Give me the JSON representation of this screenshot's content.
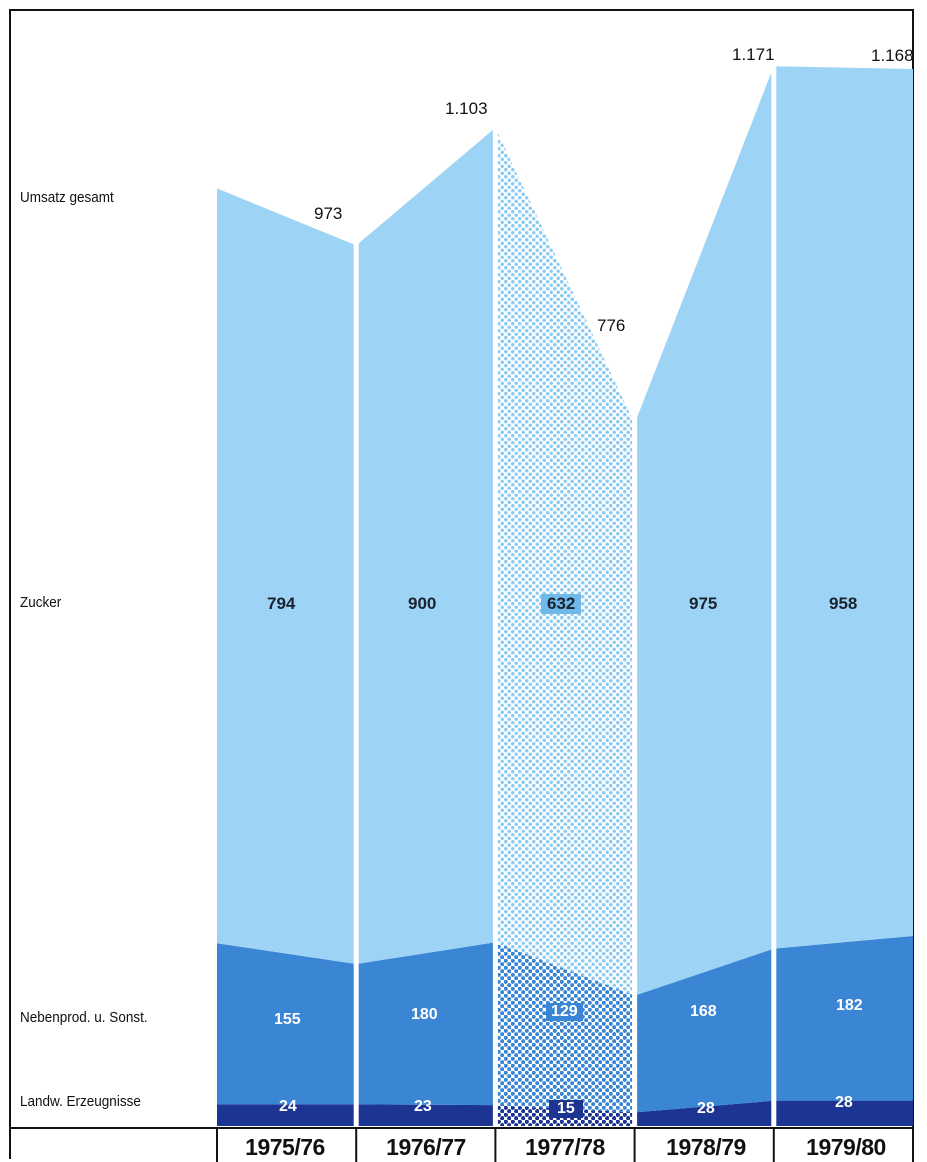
{
  "chart_data": {
    "type": "area",
    "stacked": true,
    "categories": [
      "1975/76",
      "1976/77",
      "1977/78",
      "1978/79",
      "1979/80"
    ],
    "row_labels": {
      "total": "Umsatz gesamt",
      "zucker": "Zucker",
      "neben": "Nebenprod. u. Sonst.",
      "landw": "Landw. Erzeugnisse"
    },
    "series": [
      {
        "name": "Landw. Erzeugnisse",
        "values": [
          "24",
          "23",
          "15",
          "28",
          "28"
        ],
        "color": "#1d3592"
      },
      {
        "name": "Nebenprod. u. Sonst.",
        "values": [
          "155",
          "180",
          "129",
          "168",
          "182"
        ],
        "color": "#3a86d4"
      },
      {
        "name": "Zucker",
        "values": [
          "794",
          "900",
          "632",
          "975",
          "958"
        ],
        "color": "#9dd4f6"
      }
    ],
    "totals": [
      "973",
      "1.103",
      "776",
      "1.171",
      "1.168"
    ],
    "highlight_category": "1977/78",
    "highlight_style": "dotted"
  }
}
